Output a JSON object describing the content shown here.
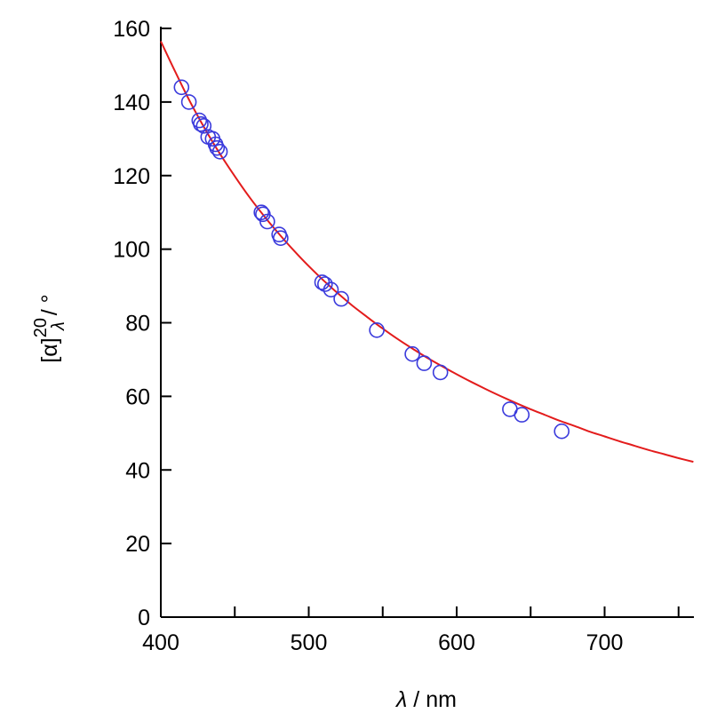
{
  "chart_data": {
    "type": "scatter",
    "title": "",
    "xlabel": {
      "symbol": "λ",
      "rest": " / nm"
    },
    "ylabel": {
      "base": "[α]",
      "superscript": "20",
      "subscript": "λ",
      "unit": " / °"
    },
    "xlim": [
      400,
      760
    ],
    "ylim": [
      0,
      160
    ],
    "x_ticks": [
      400,
      500,
      600,
      700
    ],
    "x_minor_ticks": [
      450,
      550,
      650,
      750
    ],
    "y_ticks": [
      0,
      20,
      40,
      60,
      80,
      100,
      120,
      140,
      160
    ],
    "grid": false,
    "legend": "none",
    "series": [
      {
        "kind": "points",
        "marker": "open-circle",
        "color": "#3a3adc",
        "x": [
          414,
          419,
          426,
          427,
          429,
          432,
          435,
          437,
          438,
          440,
          468,
          469,
          472,
          480,
          481,
          509,
          511,
          515,
          522,
          546,
          570,
          578,
          589,
          636,
          644,
          671
        ],
        "y": [
          144,
          140,
          135,
          134,
          133.5,
          130.5,
          130,
          128.5,
          127.5,
          126.5,
          110,
          109.5,
          107.5,
          104,
          103,
          91,
          90.5,
          89,
          86.5,
          78,
          71.5,
          69,
          66.5,
          56.5,
          55,
          50.5
        ]
      },
      {
        "kind": "curve",
        "color": "#e31c1c",
        "x": [
          400,
          410,
          420,
          430,
          440,
          450,
          460,
          470,
          480,
          490,
          500,
          510,
          520,
          530,
          540,
          550,
          560,
          570,
          580,
          590,
          600,
          610,
          620,
          630,
          640,
          650,
          660,
          670,
          680,
          690,
          700,
          710,
          720,
          730,
          740,
          750,
          760
        ],
        "y": [
          156.5,
          148,
          139.9,
          132.6,
          125.9,
          119.8,
          114.1,
          108.9,
          104.1,
          99.6,
          95.4,
          91.5,
          87.9,
          84.5,
          81.4,
          78.4,
          75.6,
          73.0,
          70.5,
          68.2,
          66.0,
          63.9,
          61.9,
          60.0,
          58.2,
          56.5,
          54.9,
          53.3,
          51.9,
          50.4,
          49.1,
          47.8,
          46.6,
          45.4,
          44.3,
          43.2,
          42.2
        ]
      }
    ]
  }
}
